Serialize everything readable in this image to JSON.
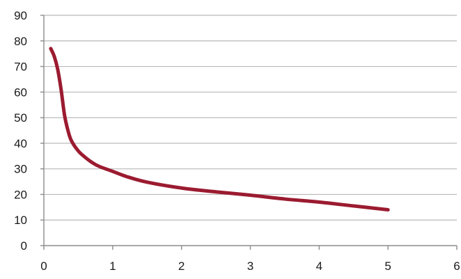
{
  "chart_data": {
    "type": "line",
    "title": "",
    "xlabel": "",
    "ylabel": "",
    "xlim": [
      0,
      6
    ],
    "ylim": [
      0,
      90
    ],
    "x_ticks": [
      0,
      1,
      2,
      3,
      4,
      5,
      6
    ],
    "y_ticks": [
      0,
      10,
      20,
      30,
      40,
      50,
      60,
      70,
      80,
      90
    ],
    "grid": "horizontal",
    "legend": "none",
    "colors": {
      "series": "#9b1b30",
      "grid": "#b8b8b8",
      "axis": "#8c8c8c"
    },
    "series": [
      {
        "x": [
          0.1,
          0.15,
          0.2,
          0.25,
          0.3,
          0.35,
          0.4,
          0.5,
          0.6,
          0.7,
          0.8,
          1.0,
          1.2,
          1.5,
          2.0,
          2.5,
          3.0,
          3.5,
          4.0,
          4.5,
          5.0
        ],
        "y": [
          77,
          74,
          69,
          61,
          51,
          45,
          41,
          37,
          34.5,
          32.5,
          31,
          29,
          27,
          24.8,
          22.5,
          21,
          19.7,
          18.2,
          17,
          15.5,
          14
        ]
      }
    ]
  }
}
